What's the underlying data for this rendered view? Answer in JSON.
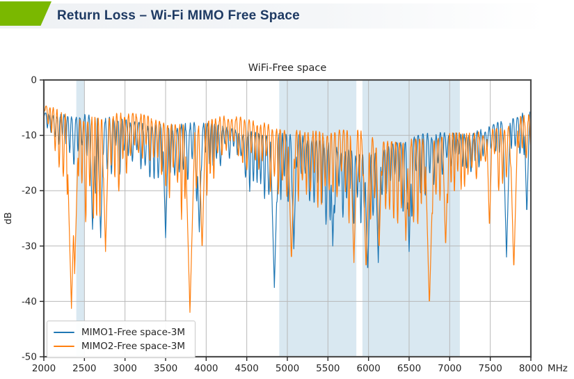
{
  "header": {
    "title": "Return Loss – Wi-Fi MIMO Free Space",
    "title_color": "#1e3a63",
    "accent_color": "#7ab800",
    "bar_color": "#eef1f4"
  },
  "chart_data": {
    "type": "line",
    "title": "WiFi-Free space",
    "ylabel": "dB",
    "x_unit_label": "MHz",
    "xlim": [
      2000,
      8000
    ],
    "ylim": [
      -50,
      0
    ],
    "x_ticks": [
      2000,
      2500,
      3000,
      3500,
      4000,
      4500,
      5000,
      5500,
      6000,
      6500,
      7000,
      7500,
      8000
    ],
    "y_ticks": [
      0,
      -10,
      -20,
      -30,
      -40,
      -50
    ],
    "grid": true,
    "legend_position": "lower-left",
    "colors": {
      "band": "#d9e8f1",
      "grid": "#b8b8b8",
      "frame": "#4d4d4d",
      "text": "#262626"
    },
    "shaded_bands": [
      {
        "from": 2400,
        "to": 2500
      },
      {
        "from": 4900,
        "to": 5850
      },
      {
        "from": 5925,
        "to": 7125
      }
    ],
    "sample_step_mhz": 4,
    "series": [
      {
        "name": "MIMO1-Free space-3M",
        "color": "#1f77b4",
        "seed": 11,
        "ripple_period_mhz": 50,
        "envelope": [
          [
            2000,
            -4.5,
            -6.5
          ],
          [
            2080,
            -5,
            -10
          ],
          [
            2200,
            -5.5,
            -13
          ],
          [
            2350,
            -6,
            -16
          ],
          [
            2500,
            -6.5,
            -19
          ],
          [
            2650,
            -7,
            -23
          ],
          [
            2800,
            -7,
            -20
          ],
          [
            3000,
            -7,
            -16
          ],
          [
            3200,
            -7,
            -18
          ],
          [
            3450,
            -7.5,
            -22
          ],
          [
            3650,
            -8,
            -19
          ],
          [
            3900,
            -8,
            -23
          ],
          [
            4100,
            -8,
            -17
          ],
          [
            4300,
            -8,
            -16
          ],
          [
            4500,
            -8.5,
            -19
          ],
          [
            4700,
            -9,
            -23
          ],
          [
            4900,
            -9.5,
            -25
          ],
          [
            5100,
            -10,
            -23
          ],
          [
            5300,
            -11,
            -25
          ],
          [
            5500,
            -11.5,
            -27
          ],
          [
            5700,
            -12,
            -25
          ],
          [
            5900,
            -12.5,
            -27
          ],
          [
            6100,
            -12,
            -28
          ],
          [
            6300,
            -11.5,
            -25
          ],
          [
            6500,
            -11,
            -27
          ],
          [
            6700,
            -10,
            -22
          ],
          [
            6900,
            -9.5,
            -19
          ],
          [
            7100,
            -9,
            -17
          ],
          [
            7300,
            -8.5,
            -16
          ],
          [
            7500,
            -8,
            -15
          ],
          [
            7700,
            -7,
            -17
          ],
          [
            7850,
            -6.5,
            -15
          ],
          [
            8000,
            -6,
            -18
          ]
        ],
        "notches": [
          [
            2600,
            -27
          ],
          [
            2700,
            -28.5
          ],
          [
            3500,
            -28.5
          ],
          [
            3915,
            -28
          ],
          [
            4840,
            -37.5
          ],
          [
            5080,
            -30.5
          ],
          [
            5560,
            -30
          ],
          [
            5990,
            -35
          ],
          [
            6120,
            -33
          ],
          [
            6500,
            -31
          ],
          [
            7700,
            -32
          ],
          [
            7950,
            -24.5
          ]
        ]
      },
      {
        "name": "MIMO2-Free space-3M",
        "color": "#ff7f0e",
        "seed": 29,
        "ripple_period_mhz": 48,
        "envelope": [
          [
            2000,
            -4.5,
            -6.5
          ],
          [
            2080,
            -5,
            -12
          ],
          [
            2200,
            -5.5,
            -18
          ],
          [
            2330,
            -6,
            -24
          ],
          [
            2450,
            -6,
            -26
          ],
          [
            2600,
            -6,
            -27
          ],
          [
            2750,
            -6,
            -28
          ],
          [
            2900,
            -6,
            -22
          ],
          [
            3100,
            -6,
            -17
          ],
          [
            3300,
            -6.5,
            -19
          ],
          [
            3500,
            -7,
            -23
          ],
          [
            3700,
            -7,
            -26
          ],
          [
            3900,
            -7,
            -27
          ],
          [
            4050,
            -6.5,
            -20
          ],
          [
            4250,
            -6.5,
            -15
          ],
          [
            4450,
            -7,
            -17
          ],
          [
            4650,
            -7.5,
            -19
          ],
          [
            4850,
            -8,
            -21
          ],
          [
            5050,
            -8,
            -24
          ],
          [
            5250,
            -8.5,
            -22
          ],
          [
            5450,
            -9,
            -24
          ],
          [
            5650,
            -9,
            -26
          ],
          [
            5850,
            -9.5,
            -27
          ],
          [
            6050,
            -10,
            -28
          ],
          [
            6250,
            -10,
            -25
          ],
          [
            6450,
            -10,
            -27
          ],
          [
            6650,
            -10,
            -28
          ],
          [
            6850,
            -10,
            -25
          ],
          [
            7050,
            -10,
            -23
          ],
          [
            7250,
            -10,
            -21
          ],
          [
            7450,
            -9,
            -19
          ],
          [
            7650,
            -8,
            -20
          ],
          [
            7850,
            -6,
            -17
          ],
          [
            8000,
            -5.5,
            -12
          ]
        ],
        "notches": [
          [
            2340,
            -41.3
          ],
          [
            2380,
            -35
          ],
          [
            2760,
            -31
          ],
          [
            3800,
            -42
          ],
          [
            3950,
            -31
          ],
          [
            5050,
            -33
          ],
          [
            5820,
            -33
          ],
          [
            5970,
            -34.5
          ],
          [
            6130,
            -31
          ],
          [
            6460,
            -29
          ],
          [
            6750,
            -41
          ],
          [
            6950,
            -30.5
          ],
          [
            7490,
            -27
          ],
          [
            7790,
            -34.5
          ]
        ]
      }
    ]
  }
}
